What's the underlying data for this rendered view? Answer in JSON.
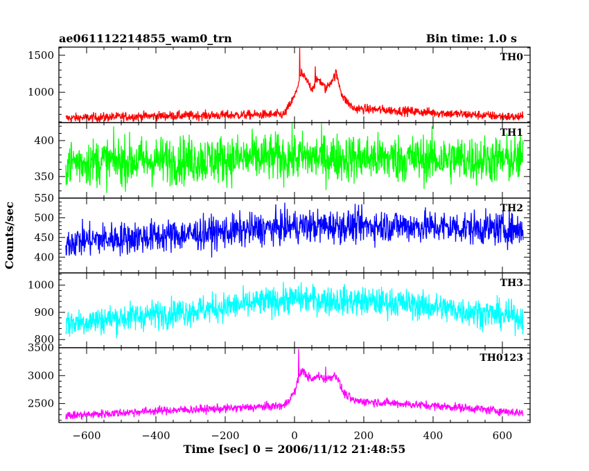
{
  "header": {
    "title": "ae061112214855_wam0_trn",
    "bin_time": "Bin time: 1.0 s"
  },
  "chart_data": {
    "type": "line",
    "xlabel": "Time [sec] 0 = 2006/11/12 21:48:55",
    "ylabel": "Counts/sec",
    "xlim": [
      -680,
      680
    ],
    "x_ticks": [
      -600,
      -400,
      -200,
      0,
      200,
      400,
      600
    ],
    "bin_time_s": 1.0,
    "panels": [
      {
        "name": "TH0",
        "color": "#ff0000",
        "ylim": [
          590,
          1610
        ],
        "y_ticks": [
          1000,
          1500
        ],
        "profile": [
          [
            -660,
            650
          ],
          [
            -400,
            680
          ],
          [
            -200,
            690
          ],
          [
            -30,
            700
          ],
          [
            0,
            940
          ],
          [
            20,
            1260
          ],
          [
            50,
            1050
          ],
          [
            70,
            1180
          ],
          [
            90,
            1040
          ],
          [
            120,
            1250
          ],
          [
            140,
            930
          ],
          [
            170,
            780
          ],
          [
            300,
            750
          ],
          [
            500,
            700
          ],
          [
            660,
            660
          ]
        ],
        "noise": 45,
        "spikes": [
          [
            15,
            1600
          ],
          [
            60,
            1350
          ],
          [
            120,
            1300
          ]
        ]
      },
      {
        "name": "TH1",
        "color": "#00ff00",
        "ylim": [
          320,
          425
        ],
        "y_ticks": [
          350,
          400
        ],
        "profile": [
          [
            -660,
            370
          ],
          [
            -300,
            373
          ],
          [
            0,
            377
          ],
          [
            300,
            375
          ],
          [
            660,
            373
          ]
        ],
        "noise": 24,
        "spikes": []
      },
      {
        "name": "TH2",
        "color": "#0000ff",
        "ylim": [
          360,
          550
        ],
        "y_ticks": [
          400,
          450,
          500,
          550
        ],
        "profile": [
          [
            -660,
            440
          ],
          [
            -300,
            458
          ],
          [
            0,
            478
          ],
          [
            300,
            480
          ],
          [
            660,
            470
          ]
        ],
        "noise": 30,
        "spikes": []
      },
      {
        "name": "TH3",
        "color": "#00ffff",
        "ylim": [
          770,
          1045
        ],
        "y_ticks": [
          800,
          900,
          1000
        ],
        "profile": [
          [
            -660,
            860
          ],
          [
            -300,
            905
          ],
          [
            0,
            950
          ],
          [
            300,
            935
          ],
          [
            660,
            880
          ]
        ],
        "noise": 38,
        "spikes": []
      },
      {
        "name": "TH0123",
        "color": "#ff00ff",
        "ylim": [
          2160,
          3500
        ],
        "y_ticks": [
          2500,
          3000,
          3500
        ],
        "profile": [
          [
            -660,
            2280
          ],
          [
            -400,
            2370
          ],
          [
            -200,
            2410
          ],
          [
            -30,
            2460
          ],
          [
            0,
            2700
          ],
          [
            20,
            3100
          ],
          [
            50,
            2920
          ],
          [
            70,
            3000
          ],
          [
            90,
            2930
          ],
          [
            120,
            3020
          ],
          [
            140,
            2700
          ],
          [
            170,
            2550
          ],
          [
            300,
            2500
          ],
          [
            500,
            2420
          ],
          [
            660,
            2330
          ]
        ],
        "noise": 55,
        "spikes": [
          [
            12,
            3480
          ],
          [
            90,
            3160
          ]
        ]
      }
    ]
  }
}
